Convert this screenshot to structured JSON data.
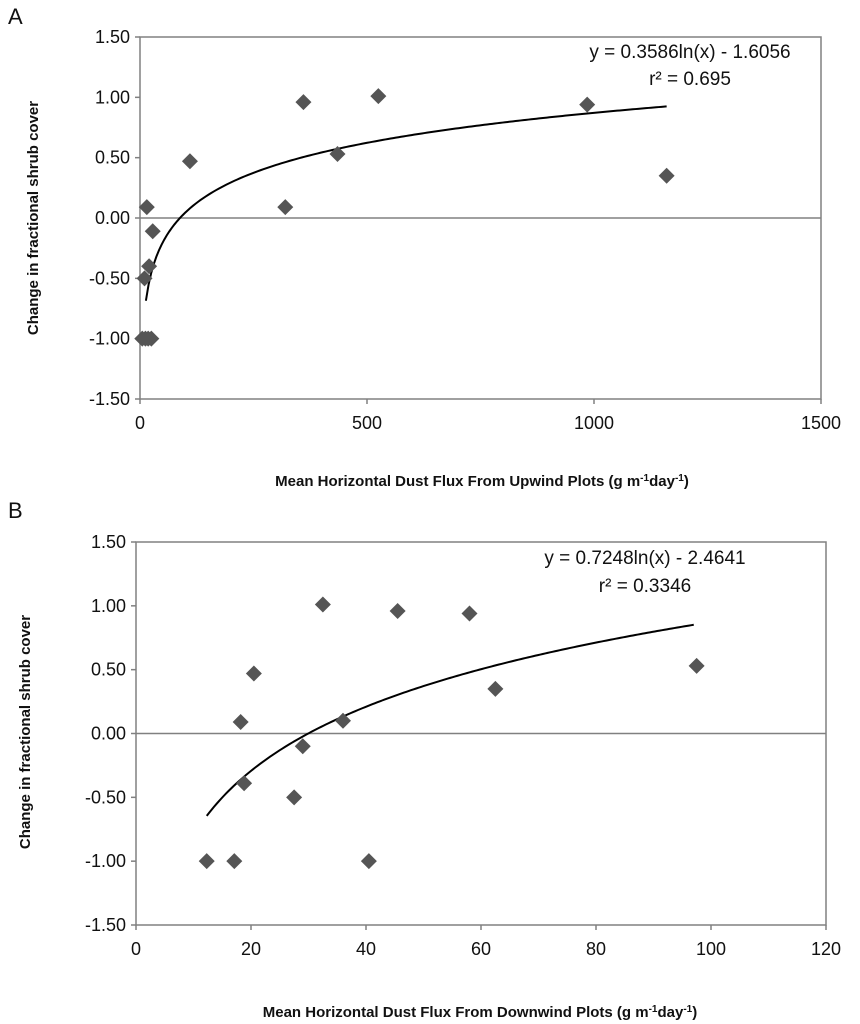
{
  "chart_data": [
    {
      "panel": "A",
      "type": "scatter",
      "xlabel": "Mean Horizontal Dust Flux From Upwind Plots (g m-1day-1)",
      "xlabel_parts": {
        "pre": "Mean Horizontal Dust Flux From Upwind Plots (g m",
        "sup1": "-1",
        "mid": "day",
        "sup2": "-1",
        "post": ")"
      },
      "ylabel": "Change in fractional shrub cover",
      "xlim": [
        0,
        1500
      ],
      "ylim": [
        -1.5,
        1.5
      ],
      "x_ticks": [
        "0",
        "500",
        "1000",
        "1500"
      ],
      "y_ticks": [
        "1.50",
        "1.00",
        "0.50",
        "0.00",
        "-0.50",
        "-1.00",
        "-1.50"
      ],
      "equation": "y = 0.3586ln(x) - 1.6056",
      "r2": "r² = 0.695",
      "trend": {
        "a": 0.3586,
        "b": -1.6056,
        "x_range": [
          13,
          1160
        ]
      },
      "points": [
        {
          "x": 5,
          "y": -1.0
        },
        {
          "x": 12,
          "y": -1.0
        },
        {
          "x": 18,
          "y": -1.0
        },
        {
          "x": 25,
          "y": -1.0
        },
        {
          "x": 10,
          "y": -0.5
        },
        {
          "x": 20,
          "y": -0.4
        },
        {
          "x": 15,
          "y": 0.09
        },
        {
          "x": 28,
          "y": -0.11
        },
        {
          "x": 110,
          "y": 0.47
        },
        {
          "x": 320,
          "y": 0.09
        },
        {
          "x": 360,
          "y": 0.96
        },
        {
          "x": 435,
          "y": 0.53
        },
        {
          "x": 525,
          "y": 1.01
        },
        {
          "x": 985,
          "y": 0.94
        },
        {
          "x": 1160,
          "y": 0.35
        }
      ]
    },
    {
      "panel": "B",
      "type": "scatter",
      "xlabel": "Mean Horizontal Dust Flux From Downwind Plots (g m-1day-1)",
      "xlabel_parts": {
        "pre": "Mean Horizontal Dust Flux From Downwind Plots (g m",
        "sup1": "-1",
        "mid": "day",
        "sup2": "-1",
        "post": ")"
      },
      "ylabel": "Change in fractional shrub cover",
      "xlim": [
        0,
        120
      ],
      "ylim": [
        -1.5,
        1.5
      ],
      "x_ticks": [
        "0",
        "20",
        "40",
        "60",
        "80",
        "100",
        "120"
      ],
      "y_ticks": [
        "1.50",
        "1.00",
        "0.50",
        "0.00",
        "-0.50",
        "-1.00",
        "-1.50"
      ],
      "equation": "y = 0.7248ln(x) - 2.4641",
      "r2": "r² = 0.3346",
      "trend": {
        "a": 0.7248,
        "b": -2.4641,
        "x_range": [
          12.3,
          97
        ]
      },
      "points": [
        {
          "x": 12.3,
          "y": -1.0
        },
        {
          "x": 17.1,
          "y": -1.0
        },
        {
          "x": 18.2,
          "y": 0.09
        },
        {
          "x": 18.8,
          "y": -0.39
        },
        {
          "x": 20.5,
          "y": 0.47
        },
        {
          "x": 27.5,
          "y": -0.5
        },
        {
          "x": 29.0,
          "y": -0.1
        },
        {
          "x": 32.5,
          "y": 1.01
        },
        {
          "x": 36.0,
          "y": 0.1
        },
        {
          "x": 40.5,
          "y": -1.0
        },
        {
          "x": 45.5,
          "y": 0.96
        },
        {
          "x": 58.0,
          "y": 0.94
        },
        {
          "x": 62.5,
          "y": 0.35
        },
        {
          "x": 97.5,
          "y": 0.53
        }
      ]
    }
  ],
  "panels": [
    {
      "letter": "A"
    },
    {
      "letter": "B"
    }
  ],
  "colors": {
    "marker": "#555555",
    "line": "#000000",
    "frame": "#808080",
    "zero_line": "#808080"
  }
}
